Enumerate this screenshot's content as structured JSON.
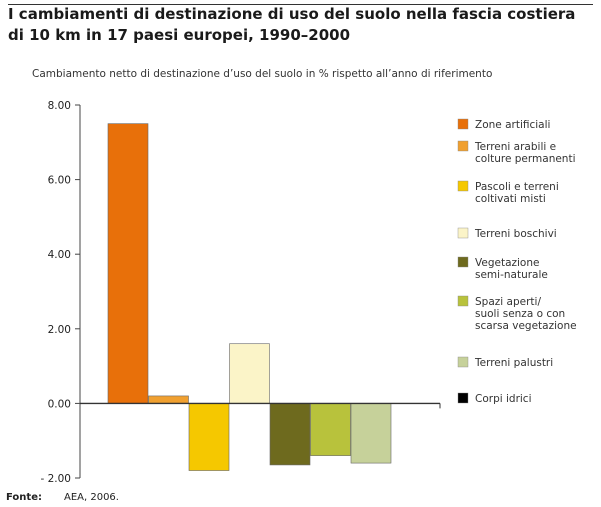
{
  "title": "I cambiamenti di destinazione di uso del suolo nella fascia costiera di 10 km in 17 paesi europei, 1990–2000",
  "subtitle": "Cambiamento netto di destinazione d’uso del suolo in % rispetto all’anno di riferimento",
  "source": {
    "label": "Fonte:",
    "text": "AEA, 2006."
  },
  "chart_data": {
    "type": "bar",
    "title": "I cambiamenti di destinazione di uso del suolo nella fascia costiera di 10 km in 17 paesi europei, 1990–2000",
    "ylabel": "Cambiamento netto di destinazione d’uso del suolo in % rispetto all’anno di riferimento",
    "xlabel": "",
    "ylim": [
      -2,
      8
    ],
    "yticks": [
      "8.00",
      "6.00",
      "4.00",
      "2.00",
      "0.00",
      "- 2.00"
    ],
    "ytick_values": [
      8,
      6,
      4,
      2,
      0,
      -2
    ],
    "grid": false,
    "legend_position": "right",
    "categories": [
      "Zone artificiali",
      "Terreni arabili e colture permanenti",
      "Pascoli e terreni coltivati misti",
      "Terreni boschivi",
      "Vegetazione semi-naturale",
      "Spazi aperti/ suoli senza o con scarsa vegetazione",
      "Terreni palustri",
      "Corpi idrici"
    ],
    "values": [
      7.5,
      0.2,
      -1.8,
      1.6,
      -1.65,
      -1.4,
      -1.6,
      0.0
    ],
    "colors": [
      "#e8700a",
      "#f0a030",
      "#f5c800",
      "#fbf4c8",
      "#6e6a1e",
      "#b8c23c",
      "#c6d19a",
      "#000000"
    ],
    "legend": [
      [
        "Zone artificiali"
      ],
      [
        "Terreni arabili e",
        "colture permanenti"
      ],
      [
        "Pascoli e terreni",
        "coltivati misti"
      ],
      [
        "Terreni boschivi"
      ],
      [
        "Vegetazione",
        "semi-naturale"
      ],
      [
        "Spazi aperti/",
        "suoli senza o con",
        "scarsa vegetazione"
      ],
      [
        "Terreni palustri"
      ],
      [
        "Corpi idrici"
      ]
    ]
  }
}
